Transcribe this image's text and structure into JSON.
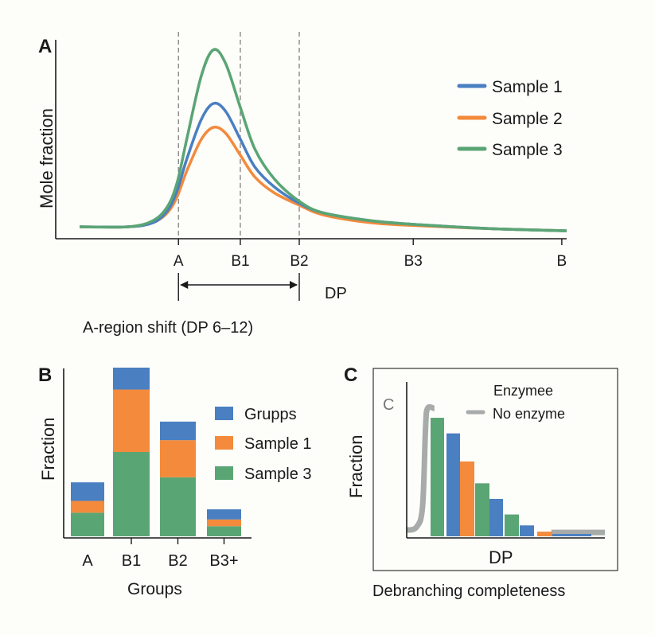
{
  "colors": {
    "blue": "#4a7fc1",
    "orange": "#f38a3c",
    "green": "#5aa574",
    "gray": "#a7abaa",
    "axis": "#1a1a1a"
  },
  "chart_data": [
    {
      "panel": "A",
      "type": "line",
      "ylabel": "Mole fraction",
      "xlabel": "DP",
      "xlim": [
        0,
        100
      ],
      "ylim": [
        0,
        1
      ],
      "grid": false,
      "legend_placement": "right",
      "x_ticks": [
        {
          "label": "A",
          "x": 20.3
        },
        {
          "label": "B1",
          "x": 33
        },
        {
          "label": "B2",
          "x": 45.1
        },
        {
          "label": "B3",
          "x": 68.5
        },
        {
          "label": "B",
          "x": 99
        }
      ],
      "dashed_lines_at": [
        "A",
        "B1",
        "B2"
      ],
      "annotation": "A-region shift (DP 6–12)",
      "x": [
        0,
        10,
        15,
        18,
        20,
        22,
        25,
        27.5,
        30,
        33,
        36,
        40,
        45,
        50,
        60,
        70,
        85,
        100
      ],
      "series": [
        {
          "name": "Sample 1",
          "color": "#4a7fc1",
          "values": [
            0.06,
            0.06,
            0.08,
            0.14,
            0.24,
            0.4,
            0.6,
            0.68,
            0.64,
            0.5,
            0.36,
            0.26,
            0.18,
            0.13,
            0.09,
            0.07,
            0.05,
            0.04
          ]
        },
        {
          "name": "Sample 2",
          "color": "#f38a3c",
          "values": [
            0.06,
            0.06,
            0.08,
            0.13,
            0.21,
            0.34,
            0.5,
            0.56,
            0.53,
            0.42,
            0.31,
            0.23,
            0.17,
            0.12,
            0.08,
            0.065,
            0.05,
            0.04
          ]
        },
        {
          "name": "Sample 3",
          "color": "#5aa574",
          "values": [
            0.06,
            0.06,
            0.09,
            0.16,
            0.28,
            0.5,
            0.82,
            0.95,
            0.88,
            0.66,
            0.45,
            0.3,
            0.19,
            0.13,
            0.09,
            0.07,
            0.05,
            0.04
          ]
        }
      ]
    },
    {
      "panel": "B",
      "type": "bar",
      "stacked": true,
      "ylabel": "Fraction",
      "xlabel": "Groups",
      "ylim": [
        0,
        1
      ],
      "categories": [
        "A",
        "B1",
        "B2",
        "B3+"
      ],
      "series": [
        {
          "name": "Sample 3",
          "color": "#5aa574",
          "values": [
            0.14,
            0.5,
            0.35,
            0.06
          ]
        },
        {
          "name": "Sample 1",
          "color": "#f38a3c",
          "values": [
            0.07,
            0.37,
            0.22,
            0.04
          ]
        },
        {
          "name": "Grupps",
          "color": "#4a7fc1",
          "values": [
            0.11,
            0.13,
            0.11,
            0.06
          ]
        }
      ],
      "legend": [
        "Grupps",
        "Sample 1",
        "Sample 3"
      ],
      "legend_placement": "right"
    },
    {
      "panel": "C",
      "type": "bar",
      "ylabel": "Fraction",
      "xlabel": "DP",
      "caption": "Debranching completeness",
      "inset_letter": "C",
      "ylim": [
        0,
        1
      ],
      "bars": [
        {
          "color": "#5aa574",
          "value": 0.76
        },
        {
          "color": "#4a7fc1",
          "value": 0.66
        },
        {
          "color": "#f38a3c",
          "value": 0.48
        },
        {
          "color": "#5aa574",
          "value": 0.34
        },
        {
          "color": "#4a7fc1",
          "value": 0.24
        },
        {
          "color": "#5aa574",
          "value": 0.14
        },
        {
          "color": "#4a7fc1",
          "value": 0.07
        },
        {
          "color": "#f38a3c",
          "value": 0.03
        },
        {
          "color": "#4a7fc1",
          "value": 0.015
        }
      ],
      "line_series": {
        "name": "No enzyme",
        "color": "#a7abaa",
        "segments": [
          [
            [
              0,
              0.05
            ],
            [
              5,
              0.07
            ],
            [
              8,
              0.2
            ],
            [
              9.5,
              0.7
            ],
            [
              10.5,
              0.83
            ],
            [
              14,
              0.83
            ]
          ],
          [
            [
              73,
              0.035
            ],
            [
              100,
              0.035
            ]
          ]
        ]
      },
      "legend": [
        "Enzymee",
        "No enzyme"
      ],
      "legend_placement": "top-right"
    }
  ],
  "labels": {
    "panelA": "A",
    "panelB": "B",
    "panelC": "C",
    "a_ylabel": "Mole fraction",
    "a_xlabel": "DP",
    "a_annotation": "A-region shift (DP 6–12)",
    "a_leg": [
      "Sample 1",
      "Sample 2",
      "Sample 3"
    ],
    "b_ylabel": "Fraction",
    "b_xlabel": "Groups",
    "b_leg": [
      "Grupps",
      "Sample 1",
      "Sample 3"
    ],
    "c_ylabel": "Fraction",
    "c_xlabel": "DP",
    "c_caption": "Debranching completeness",
    "c_inset": "C",
    "c_leg1": "Enzymee",
    "c_leg2": "No enzyme"
  }
}
